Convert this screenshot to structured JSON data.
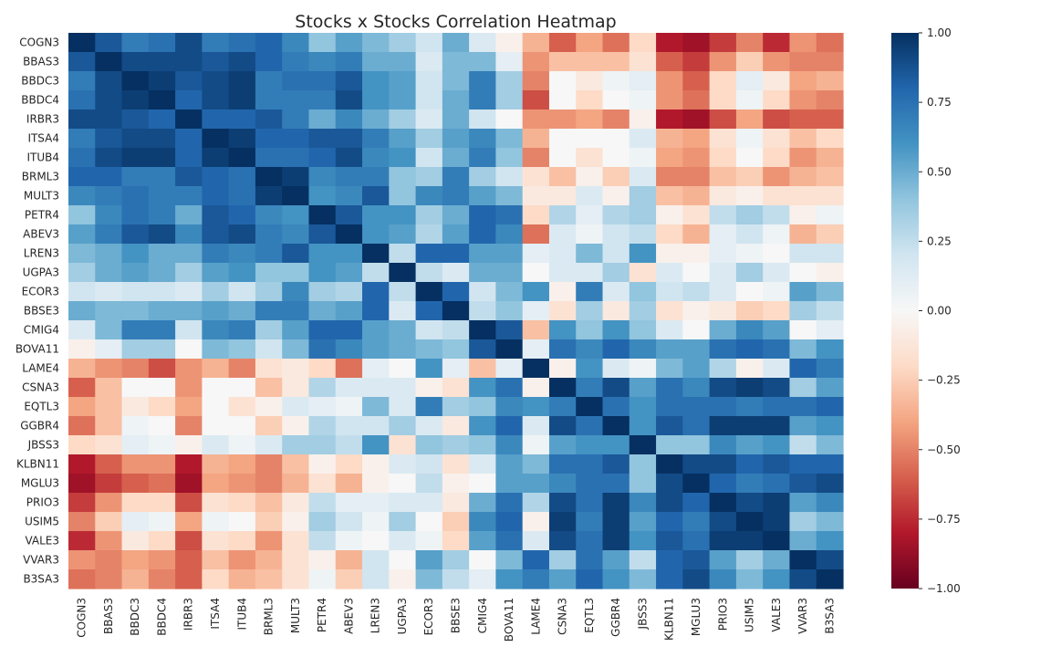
{
  "chart_data": {
    "type": "heatmap",
    "title": "Stocks x Stocks Correlation Heatmap",
    "xlabel": "",
    "ylabel": "",
    "labels": [
      "COGN3",
      "BBAS3",
      "BBDC3",
      "BBDC4",
      "IRBR3",
      "ITSA4",
      "ITUB4",
      "BRML3",
      "MULT3",
      "PETR4",
      "ABEV3",
      "LREN3",
      "UGPA3",
      "ECOR3",
      "BBSE3",
      "CMIG4",
      "BOVA11",
      "LAME4",
      "CSNA3",
      "EQTL3",
      "GGBR4",
      "JBSS3",
      "KLBN11",
      "MGLU3",
      "PRIO3",
      "USIM5",
      "VALE3",
      "VVAR3",
      "B3SA3"
    ],
    "matrix": [
      [
        1.0,
        0.85,
        0.7,
        0.75,
        0.9,
        0.7,
        0.75,
        0.8,
        0.65,
        0.4,
        0.55,
        0.45,
        0.35,
        0.2,
        0.5,
        0.15,
        -0.05,
        -0.35,
        -0.6,
        -0.4,
        -0.55,
        -0.2,
        -0.8,
        -0.85,
        -0.7,
        -0.5,
        -0.75,
        -0.45,
        -0.55
      ],
      [
        0.85,
        1.0,
        0.9,
        0.9,
        0.9,
        0.85,
        0.9,
        0.8,
        0.7,
        0.65,
        0.7,
        0.5,
        0.5,
        0.15,
        0.45,
        0.45,
        0.1,
        -0.45,
        -0.3,
        -0.3,
        -0.3,
        -0.15,
        -0.6,
        -0.7,
        -0.45,
        -0.25,
        -0.45,
        -0.5,
        -0.5
      ],
      [
        0.7,
        0.9,
        1.0,
        0.95,
        0.85,
        0.9,
        0.95,
        0.7,
        0.75,
        0.75,
        0.85,
        0.6,
        0.55,
        0.2,
        0.45,
        0.7,
        0.35,
        -0.5,
        0.0,
        -0.1,
        0.05,
        0.1,
        -0.45,
        -0.6,
        -0.2,
        0.1,
        -0.1,
        -0.4,
        -0.35
      ],
      [
        0.75,
        0.9,
        0.95,
        1.0,
        0.8,
        0.9,
        0.95,
        0.7,
        0.7,
        0.7,
        0.9,
        0.6,
        0.55,
        0.2,
        0.5,
        0.7,
        0.35,
        -0.65,
        0.0,
        -0.2,
        0.0,
        0.05,
        -0.45,
        -0.55,
        -0.2,
        0.05,
        -0.2,
        -0.45,
        -0.5
      ],
      [
        0.9,
        0.9,
        0.85,
        0.8,
        1.0,
        0.8,
        0.8,
        0.85,
        0.7,
        0.5,
        0.65,
        0.5,
        0.35,
        0.15,
        0.5,
        0.2,
        0.0,
        -0.45,
        -0.45,
        -0.4,
        -0.5,
        -0.05,
        -0.8,
        -0.85,
        -0.65,
        -0.4,
        -0.65,
        -0.6,
        -0.6
      ],
      [
        0.7,
        0.85,
        0.9,
        0.9,
        0.8,
        1.0,
        0.95,
        0.8,
        0.8,
        0.85,
        0.85,
        0.7,
        0.55,
        0.35,
        0.55,
        0.65,
        0.45,
        -0.35,
        0.0,
        0.0,
        0.0,
        0.15,
        -0.35,
        -0.4,
        -0.15,
        0.05,
        -0.15,
        -0.3,
        -0.2
      ],
      [
        0.75,
        0.9,
        0.95,
        0.95,
        0.8,
        0.95,
        1.0,
        0.75,
        0.75,
        0.8,
        0.9,
        0.65,
        0.6,
        0.2,
        0.5,
        0.7,
        0.4,
        -0.5,
        0.0,
        -0.15,
        0.0,
        0.05,
        -0.4,
        -0.45,
        -0.2,
        0.0,
        -0.2,
        -0.45,
        -0.35
      ],
      [
        0.8,
        0.8,
        0.7,
        0.7,
        0.85,
        0.8,
        0.75,
        1.0,
        0.95,
        0.65,
        0.7,
        0.7,
        0.4,
        0.35,
        0.7,
        0.35,
        0.2,
        -0.15,
        -0.3,
        -0.05,
        -0.25,
        0.15,
        -0.5,
        -0.5,
        -0.3,
        -0.25,
        -0.45,
        -0.35,
        -0.3
      ],
      [
        0.65,
        0.7,
        0.75,
        0.7,
        0.7,
        0.8,
        0.75,
        0.95,
        1.0,
        0.6,
        0.65,
        0.85,
        0.4,
        0.65,
        0.7,
        0.55,
        0.45,
        -0.1,
        -0.1,
        0.15,
        -0.05,
        0.35,
        -0.3,
        -0.35,
        -0.1,
        -0.05,
        -0.15,
        -0.15,
        -0.15
      ],
      [
        0.4,
        0.65,
        0.75,
        0.7,
        0.5,
        0.85,
        0.8,
        0.65,
        0.6,
        1.0,
        0.85,
        0.6,
        0.6,
        0.35,
        0.5,
        0.8,
        0.75,
        -0.2,
        0.3,
        0.1,
        0.3,
        0.35,
        -0.05,
        -0.15,
        0.25,
        0.35,
        0.25,
        -0.05,
        0.05
      ],
      [
        0.55,
        0.7,
        0.85,
        0.9,
        0.65,
        0.85,
        0.9,
        0.7,
        0.65,
        0.85,
        1.0,
        0.6,
        0.55,
        0.3,
        0.55,
        0.8,
        0.65,
        -0.55,
        0.15,
        0.05,
        0.2,
        0.25,
        -0.2,
        -0.35,
        0.1,
        0.2,
        0.05,
        -0.35,
        -0.25
      ],
      [
        0.45,
        0.5,
        0.6,
        0.5,
        0.5,
        0.7,
        0.65,
        0.7,
        0.85,
        0.6,
        0.6,
        1.0,
        0.25,
        0.8,
        0.8,
        0.55,
        0.55,
        0.1,
        0.15,
        0.45,
        0.2,
        0.6,
        -0.05,
        -0.05,
        0.1,
        0.05,
        0.0,
        0.2,
        0.2
      ],
      [
        0.35,
        0.5,
        0.55,
        0.5,
        0.35,
        0.55,
        0.6,
        0.4,
        0.4,
        0.6,
        0.55,
        0.25,
        1.0,
        0.25,
        0.15,
        0.5,
        0.5,
        0.0,
        0.15,
        0.15,
        0.35,
        -0.15,
        0.15,
        0.0,
        0.15,
        0.35,
        0.15,
        0.0,
        -0.05
      ],
      [
        0.2,
        0.15,
        0.2,
        0.2,
        0.15,
        0.35,
        0.2,
        0.35,
        0.65,
        0.35,
        0.3,
        0.8,
        0.25,
        1.0,
        0.8,
        0.2,
        0.45,
        0.6,
        -0.05,
        0.7,
        0.15,
        0.4,
        0.2,
        0.25,
        0.15,
        0.0,
        0.05,
        0.55,
        0.45
      ],
      [
        0.5,
        0.45,
        0.45,
        0.5,
        0.5,
        0.55,
        0.5,
        0.7,
        0.7,
        0.5,
        0.55,
        0.8,
        0.15,
        0.8,
        1.0,
        0.25,
        0.4,
        0.1,
        -0.15,
        0.35,
        -0.1,
        0.35,
        -0.15,
        -0.05,
        -0.1,
        -0.25,
        -0.2,
        0.35,
        0.25
      ],
      [
        0.15,
        0.45,
        0.7,
        0.7,
        0.2,
        0.65,
        0.7,
        0.35,
        0.55,
        0.8,
        0.8,
        0.55,
        0.5,
        0.2,
        0.25,
        1.0,
        0.85,
        -0.3,
        0.6,
        0.4,
        0.6,
        0.4,
        0.15,
        0.0,
        0.5,
        0.65,
        0.55,
        0.0,
        0.1
      ],
      [
        -0.05,
        0.1,
        0.35,
        0.35,
        0.0,
        0.45,
        0.4,
        0.2,
        0.45,
        0.75,
        0.65,
        0.55,
        0.5,
        0.45,
        0.4,
        0.85,
        1.0,
        0.1,
        0.75,
        0.65,
        0.8,
        0.65,
        0.55,
        0.55,
        0.75,
        0.8,
        0.75,
        0.45,
        0.6
      ],
      [
        -0.35,
        -0.45,
        -0.5,
        -0.65,
        -0.45,
        -0.35,
        -0.5,
        -0.15,
        -0.1,
        -0.2,
        -0.55,
        0.1,
        0.0,
        0.6,
        0.1,
        -0.3,
        0.1,
        1.0,
        -0.05,
        0.6,
        0.15,
        0.05,
        0.45,
        0.55,
        0.3,
        -0.05,
        0.15,
        0.8,
        0.7
      ],
      [
        -0.6,
        -0.3,
        0.0,
        0.0,
        -0.45,
        0.0,
        0.0,
        -0.3,
        -0.1,
        0.3,
        0.15,
        0.15,
        0.15,
        -0.05,
        -0.15,
        0.6,
        0.75,
        -0.05,
        1.0,
        0.7,
        0.9,
        0.55,
        0.75,
        0.65,
        0.9,
        0.95,
        0.9,
        0.35,
        0.55
      ],
      [
        -0.4,
        -0.3,
        -0.1,
        -0.2,
        -0.4,
        0.0,
        -0.15,
        -0.05,
        0.15,
        0.1,
        0.05,
        0.45,
        0.15,
        0.7,
        0.35,
        0.4,
        0.65,
        0.6,
        0.7,
        1.0,
        0.75,
        0.6,
        0.75,
        0.75,
        0.75,
        0.7,
        0.75,
        0.75,
        0.8
      ],
      [
        -0.55,
        -0.3,
        0.05,
        0.0,
        -0.5,
        0.0,
        0.0,
        -0.25,
        -0.05,
        0.3,
        0.2,
        0.2,
        0.35,
        0.15,
        -0.1,
        0.6,
        0.8,
        0.15,
        0.9,
        0.75,
        1.0,
        0.6,
        0.85,
        0.75,
        0.95,
        0.95,
        0.95,
        0.55,
        0.6
      ],
      [
        -0.2,
        -0.15,
        0.1,
        0.05,
        -0.05,
        0.15,
        0.05,
        0.15,
        0.35,
        0.35,
        0.25,
        0.6,
        -0.15,
        0.4,
        0.35,
        0.4,
        0.65,
        0.05,
        0.55,
        0.6,
        0.6,
        1.0,
        0.4,
        0.4,
        0.65,
        0.55,
        0.6,
        0.25,
        0.45
      ],
      [
        -0.8,
        -0.6,
        -0.45,
        -0.45,
        -0.8,
        -0.35,
        -0.4,
        -0.5,
        -0.3,
        -0.05,
        -0.2,
        -0.05,
        0.15,
        0.2,
        -0.15,
        0.15,
        0.55,
        0.45,
        0.75,
        0.75,
        0.85,
        0.4,
        1.0,
        0.9,
        0.9,
        0.8,
        0.85,
        0.8,
        0.8
      ],
      [
        -0.85,
        -0.7,
        -0.6,
        -0.55,
        -0.85,
        -0.4,
        -0.45,
        -0.5,
        -0.35,
        -0.15,
        -0.35,
        -0.05,
        0.0,
        0.25,
        -0.05,
        0.0,
        0.55,
        0.55,
        0.65,
        0.75,
        0.75,
        0.4,
        0.9,
        1.0,
        0.8,
        0.7,
        0.75,
        0.85,
        0.9
      ],
      [
        -0.7,
        -0.45,
        -0.2,
        -0.2,
        -0.65,
        -0.15,
        -0.2,
        -0.3,
        -0.1,
        0.25,
        0.1,
        0.1,
        0.15,
        0.15,
        -0.1,
        0.5,
        0.75,
        0.3,
        0.9,
        0.75,
        0.95,
        0.65,
        0.9,
        0.8,
        1.0,
        0.9,
        0.95,
        0.55,
        0.65
      ],
      [
        -0.5,
        -0.25,
        0.1,
        0.05,
        -0.4,
        0.05,
        0.0,
        -0.25,
        -0.05,
        0.35,
        0.2,
        0.05,
        0.35,
        0.0,
        -0.25,
        0.65,
        0.8,
        -0.05,
        0.95,
        0.7,
        0.95,
        0.55,
        0.8,
        0.7,
        0.9,
        1.0,
        0.95,
        0.35,
        0.45
      ],
      [
        -0.75,
        -0.45,
        -0.1,
        -0.2,
        -0.65,
        -0.15,
        -0.2,
        -0.45,
        -0.15,
        0.25,
        0.05,
        0.0,
        0.15,
        0.05,
        -0.2,
        0.55,
        0.75,
        0.15,
        0.9,
        0.75,
        0.95,
        0.6,
        0.85,
        0.75,
        0.95,
        0.95,
        1.0,
        0.5,
        0.6
      ],
      [
        -0.45,
        -0.5,
        -0.4,
        -0.45,
        -0.6,
        -0.3,
        -0.45,
        -0.35,
        -0.15,
        -0.05,
        -0.35,
        0.2,
        0.0,
        0.55,
        0.35,
        0.0,
        0.45,
        0.8,
        0.35,
        0.75,
        0.55,
        0.25,
        0.8,
        0.85,
        0.55,
        0.35,
        0.5,
        1.0,
        0.9
      ],
      [
        -0.55,
        -0.5,
        -0.35,
        -0.5,
        -0.6,
        -0.2,
        -0.35,
        -0.3,
        -0.15,
        0.05,
        -0.25,
        0.2,
        -0.05,
        0.45,
        0.25,
        0.1,
        0.6,
        0.7,
        0.55,
        0.8,
        0.6,
        0.45,
        0.8,
        0.9,
        0.65,
        0.45,
        0.6,
        0.9,
        1.0
      ]
    ],
    "vmin": -1.0,
    "vmax": 1.0,
    "colormap": "RdBu",
    "colorbar_ticks": [
      "1.00",
      "0.75",
      "0.50",
      "0.25",
      "0.00",
      "−0.25",
      "−0.50",
      "−0.75",
      "−1.00"
    ],
    "colorbar_tick_values": [
      1.0,
      0.75,
      0.5,
      0.25,
      0.0,
      -0.25,
      -0.5,
      -0.75,
      -1.0
    ],
    "legend": "colorbar-right",
    "grid": false
  }
}
